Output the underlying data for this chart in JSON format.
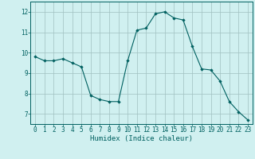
{
  "x": [
    0,
    1,
    2,
    3,
    4,
    5,
    6,
    7,
    8,
    9,
    10,
    11,
    12,
    13,
    14,
    15,
    16,
    17,
    18,
    19,
    20,
    21,
    22,
    23
  ],
  "y": [
    9.8,
    9.6,
    9.6,
    9.7,
    9.5,
    9.3,
    7.9,
    7.7,
    7.6,
    7.6,
    9.6,
    11.1,
    11.2,
    11.9,
    12.0,
    11.7,
    11.6,
    10.3,
    9.2,
    9.15,
    8.6,
    7.6,
    7.1,
    6.7
  ],
  "line_color": "#006060",
  "marker": "D",
  "marker_size": 1.8,
  "bg_color": "#d0f0f0",
  "grid_color": "#a0c0c0",
  "axis_color": "#006060",
  "xlabel": "Humidex (Indice chaleur)",
  "xlabel_fontsize": 6.5,
  "ylabel_ticks": [
    7,
    8,
    9,
    10,
    11,
    12
  ],
  "xlim": [
    -0.5,
    23.5
  ],
  "ylim": [
    6.5,
    12.5
  ],
  "tick_fontsize": 5.5,
  "linewidth": 0.8
}
